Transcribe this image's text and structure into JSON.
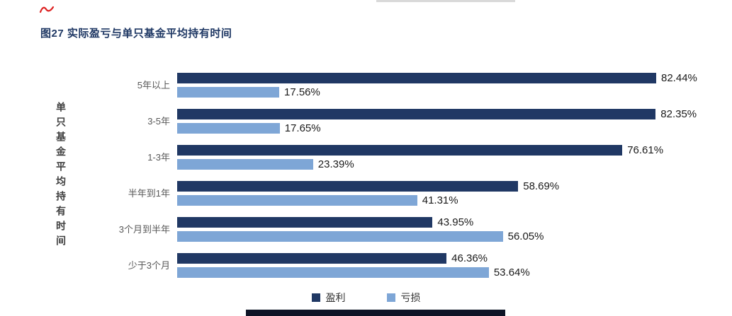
{
  "page": {
    "figure_title": "图27 实际盈亏与单只基金平均持有时间"
  },
  "colors": {
    "profit": "#203864",
    "loss": "#7EA6D6",
    "title": "#1F3864"
  },
  "chart_data": {
    "type": "bar",
    "orientation": "horizontal",
    "title": "图27 实际盈亏与单只基金平均持有时间",
    "ylabel": "单只基金平均持有时间",
    "xlabel": "",
    "value_suffix": "%",
    "xlim": [
      0,
      100
    ],
    "grid": false,
    "legend_position": "bottom",
    "categories": [
      "5年以上",
      "3-5年",
      "1-3年",
      "半年到1年",
      "3个月到半年",
      "少于3个月"
    ],
    "series": [
      {
        "name": "盈利",
        "color": "#203864",
        "values": [
          82.44,
          82.35,
          76.61,
          58.69,
          43.95,
          46.36
        ]
      },
      {
        "name": "亏损",
        "color": "#7EA6D6",
        "values": [
          17.56,
          17.65,
          23.39,
          41.31,
          56.05,
          53.64
        ]
      }
    ]
  }
}
